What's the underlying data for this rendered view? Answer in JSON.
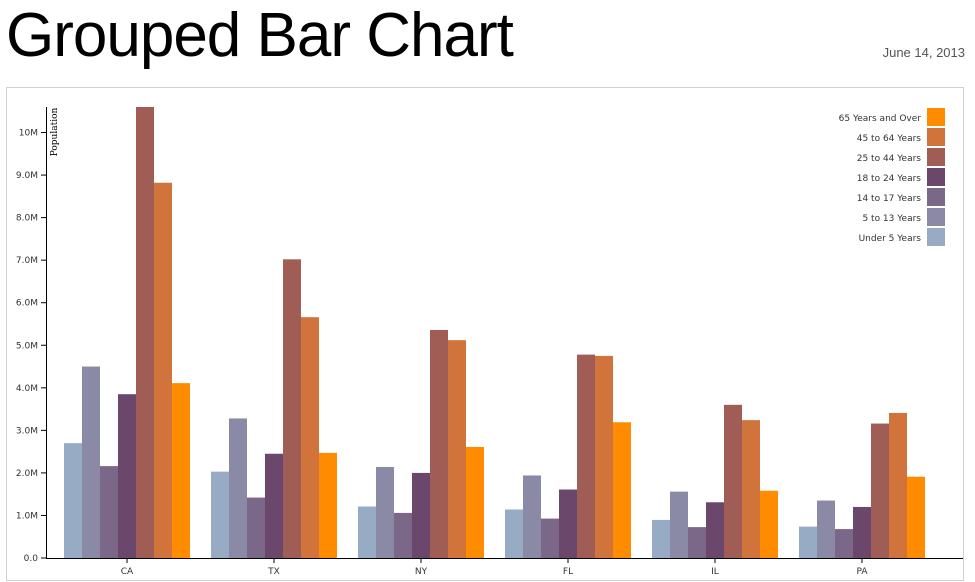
{
  "page": {
    "title": "Grouped Bar Chart",
    "date": "June 14, 2013"
  },
  "chart_data": {
    "type": "bar",
    "title": "",
    "xlabel": "",
    "ylabel": "Population",
    "ylim": [
      0,
      10600000
    ],
    "grid": false,
    "legend_position": "top-right",
    "y_tick_values": [
      0,
      1000000,
      2000000,
      3000000,
      4000000,
      5000000,
      6000000,
      7000000,
      8000000,
      9000000,
      10000000
    ],
    "y_tick_labels": [
      "0.0",
      "1.0M",
      "2.0M",
      "3.0M",
      "4.0M",
      "5.0M",
      "6.0M",
      "7.0M",
      "8.0M",
      "9.0M",
      "10M"
    ],
    "categories": [
      "CA",
      "TX",
      "NY",
      "FL",
      "IL",
      "PA"
    ],
    "series": [
      {
        "name": "Under 5 Years",
        "color": "#98abc5",
        "values": [
          2700000,
          2030000,
          1210000,
          1140000,
          895000,
          738000
        ]
      },
      {
        "name": "5 to 13 Years",
        "color": "#8a89a6",
        "values": [
          4500000,
          3280000,
          2140000,
          1940000,
          1560000,
          1350000
        ]
      },
      {
        "name": "14 to 17 Years",
        "color": "#7b6888",
        "values": [
          2160000,
          1420000,
          1060000,
          926000,
          726000,
          680000
        ]
      },
      {
        "name": "18 to 24 Years",
        "color": "#6b486b",
        "values": [
          3850000,
          2450000,
          2000000,
          1610000,
          1310000,
          1200000
        ]
      },
      {
        "name": "25 to 44 Years",
        "color": "#a05d56",
        "values": [
          10600000,
          7020000,
          5360000,
          4780000,
          3600000,
          3160000
        ]
      },
      {
        "name": "45 to 64 Years",
        "color": "#d0743c",
        "values": [
          8820000,
          5660000,
          5120000,
          4750000,
          3240000,
          3410000
        ]
      },
      {
        "name": "65 Years and Over",
        "color": "#ff8c00",
        "values": [
          4110000,
          2470000,
          2610000,
          3190000,
          1580000,
          1910000
        ]
      }
    ]
  }
}
